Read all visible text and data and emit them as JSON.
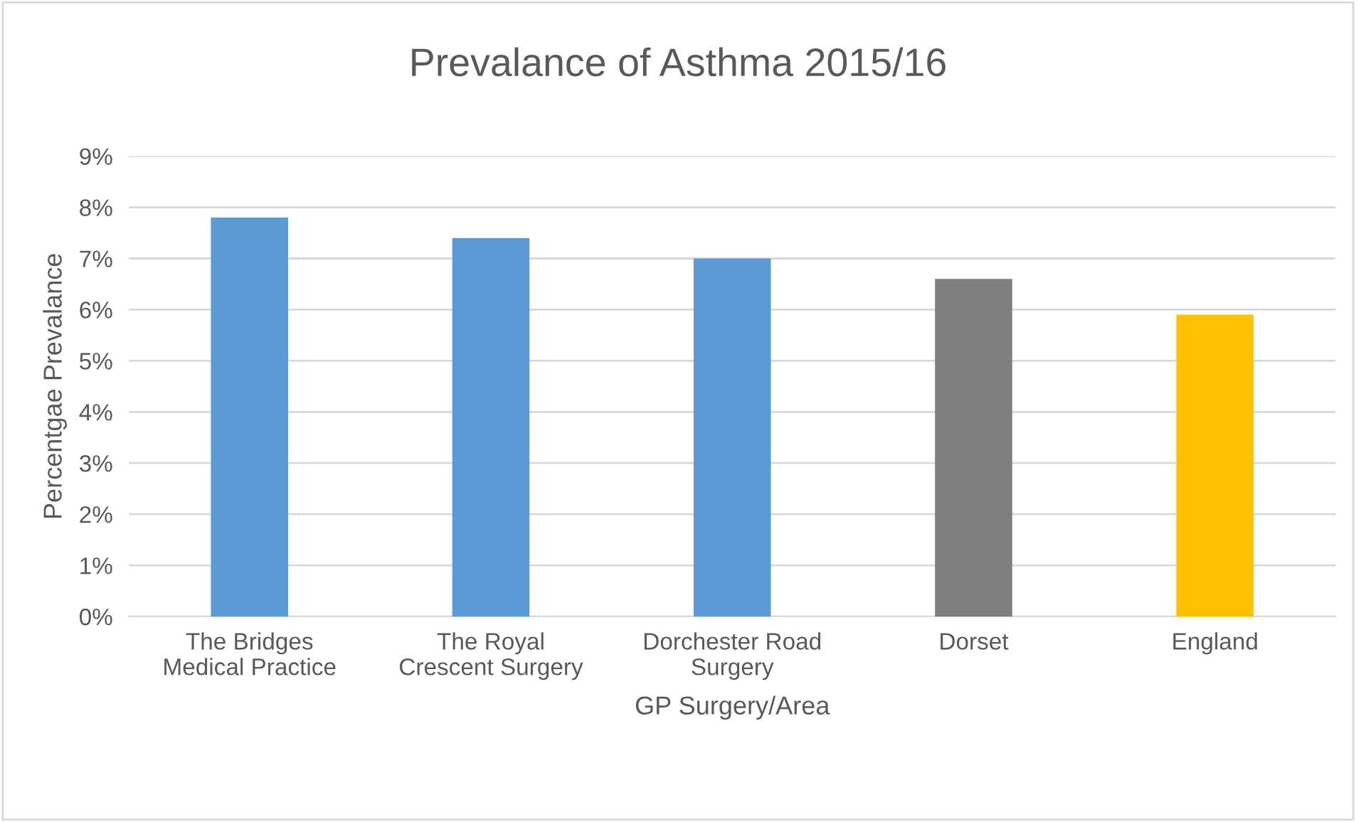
{
  "chart_data": {
    "type": "bar",
    "title": "Prevalance of Asthma 2015/16",
    "xlabel": "GP Surgery/Area",
    "ylabel": "Percentgae Prevalance",
    "categories": [
      "The Bridges\nMedical Practice",
      "The Royal\nCrescent Surgery",
      "Dorchester Road\nSurgery",
      "Dorset",
      "England"
    ],
    "values": [
      7.8,
      7.4,
      7.0,
      6.6,
      5.9
    ],
    "colors": [
      "#5b9bd5",
      "#5b9bd5",
      "#5b9bd5",
      "#7f7f7f",
      "#ffc000"
    ],
    "ylim": [
      0,
      9
    ],
    "yticks": [
      {
        "value": 0,
        "label": "0%"
      },
      {
        "value": 1,
        "label": "1%"
      },
      {
        "value": 2,
        "label": "2%"
      },
      {
        "value": 3,
        "label": "3%"
      },
      {
        "value": 4,
        "label": "4%"
      },
      {
        "value": 5,
        "label": "5%"
      },
      {
        "value": 6,
        "label": "6%"
      },
      {
        "value": 7,
        "label": "7%"
      },
      {
        "value": 8,
        "label": "8%"
      },
      {
        "value": 9,
        "label": "9%"
      }
    ],
    "grid": "y"
  }
}
